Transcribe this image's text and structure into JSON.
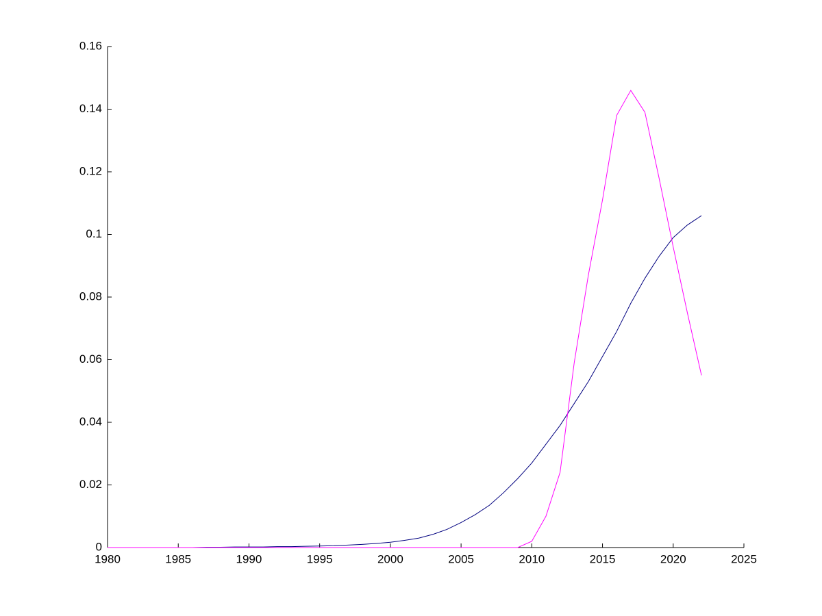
{
  "chart_data": {
    "type": "line",
    "x": [
      1980,
      1981,
      1982,
      1983,
      1984,
      1985,
      1986,
      1987,
      1988,
      1989,
      1990,
      1991,
      1992,
      1993,
      1994,
      1995,
      1996,
      1997,
      1998,
      1999,
      2000,
      2001,
      2002,
      2003,
      2004,
      2005,
      2006,
      2007,
      2008,
      2009,
      2010,
      2011,
      2012,
      2013,
      2014,
      2015,
      2016,
      2017,
      2018,
      2019,
      2020,
      2021,
      2022
    ],
    "series": [
      {
        "color": "#00007f",
        "values": [
          0,
          0,
          0,
          0,
          0,
          0,
          0,
          0.0001,
          0.0001,
          0.0002,
          0.0002,
          0.0002,
          0.0003,
          0.0003,
          0.0004,
          0.0005,
          0.0006,
          0.0008,
          0.001,
          0.0013,
          0.0017,
          0.0023,
          0.003,
          0.0042,
          0.0058,
          0.008,
          0.0105,
          0.0135,
          0.0175,
          0.022,
          0.027,
          0.033,
          0.039,
          0.046,
          0.053,
          0.061,
          0.069,
          0.078,
          0.086,
          0.093,
          0.099,
          0.103,
          0.106
        ]
      },
      {
        "color": "#ff00ff",
        "values": [
          0,
          0,
          0,
          0,
          0,
          0,
          0,
          0,
          0,
          0,
          0,
          0,
          0,
          0,
          0,
          0,
          0,
          0,
          0,
          0,
          0,
          0,
          0,
          0,
          0,
          0,
          0,
          0,
          0,
          0,
          0.002,
          0.01,
          0.024,
          0.059,
          0.087,
          0.111,
          0.138,
          0.146,
          0.139,
          0.118,
          0.096,
          0.075,
          0.055
        ]
      }
    ],
    "xlim": [
      1980,
      2025
    ],
    "xticks": [
      1980,
      1985,
      1990,
      1995,
      2000,
      2005,
      2010,
      2015,
      2020,
      2025
    ],
    "ylim": [
      0,
      0.16
    ],
    "yticks": [
      0,
      0.02,
      0.04,
      0.06,
      0.08,
      0.1,
      0.12,
      0.14,
      0.16
    ]
  }
}
